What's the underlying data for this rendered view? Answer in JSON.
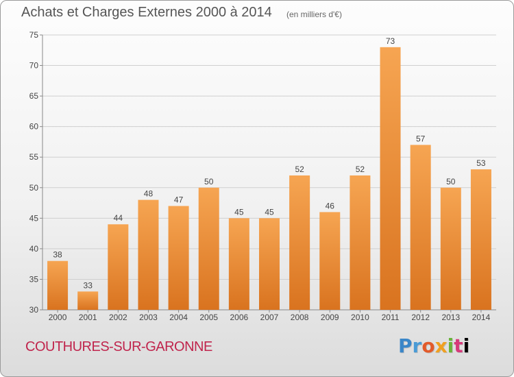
{
  "header": {
    "title": "Achats et Charges Externes 2000 à 2014",
    "subtitle": "(en milliers d'€)"
  },
  "footer": {
    "commune": "COUTHURES-SUR-GARONNE",
    "logo_text": "Proxiti"
  },
  "colors": {
    "bar_top": "#f6a552",
    "bar_bottom": "#d9731f",
    "grid": "#cfcfcf"
  },
  "chart_data": {
    "type": "bar",
    "title": "Achats et Charges Externes 2000 à 2014",
    "subtitle": "(en milliers d'€)",
    "categories": [
      "2000",
      "2001",
      "2002",
      "2003",
      "2004",
      "2005",
      "2006",
      "2007",
      "2008",
      "2009",
      "2010",
      "2011",
      "2012",
      "2013",
      "2014"
    ],
    "values": [
      38,
      33,
      44,
      48,
      47,
      50,
      45,
      45,
      52,
      46,
      52,
      73,
      57,
      50,
      53
    ],
    "ylim": [
      30,
      75
    ],
    "yticks": [
      30,
      35,
      40,
      45,
      50,
      55,
      60,
      65,
      70,
      75
    ],
    "grid": true,
    "xlabel": "",
    "ylabel": ""
  }
}
